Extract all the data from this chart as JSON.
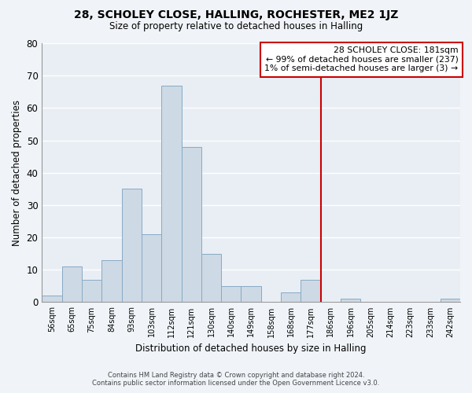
{
  "title": "28, SCHOLEY CLOSE, HALLING, ROCHESTER, ME2 1JZ",
  "subtitle": "Size of property relative to detached houses in Halling",
  "xlabel": "Distribution of detached houses by size in Halling",
  "ylabel": "Number of detached properties",
  "bar_labels": [
    "56sqm",
    "65sqm",
    "75sqm",
    "84sqm",
    "93sqm",
    "103sqm",
    "112sqm",
    "121sqm",
    "130sqm",
    "140sqm",
    "149sqm",
    "158sqm",
    "168sqm",
    "177sqm",
    "186sqm",
    "196sqm",
    "205sqm",
    "214sqm",
    "223sqm",
    "233sqm",
    "242sqm"
  ],
  "bar_values": [
    2,
    11,
    7,
    13,
    35,
    21,
    67,
    48,
    15,
    5,
    5,
    0,
    3,
    7,
    0,
    1,
    0,
    0,
    0,
    0,
    1
  ],
  "bar_color": "#cdd9e5",
  "bar_edge_color": "#88aac4",
  "vline_x_idx": 13.5,
  "vline_color": "#cc0000",
  "annotation_title": "28 SCHOLEY CLOSE: 181sqm",
  "annotation_line1": "← 99% of detached houses are smaller (237)",
  "annotation_line2": "1% of semi-detached houses are larger (3) →",
  "annotation_box_color": "#ffffff",
  "annotation_box_edge": "#cc0000",
  "ylim": [
    0,
    80
  ],
  "yticks": [
    0,
    10,
    20,
    30,
    40,
    50,
    60,
    70,
    80
  ],
  "footer1": "Contains HM Land Registry data © Crown copyright and database right 2024.",
  "footer2": "Contains public sector information licensed under the Open Government Licence v3.0.",
  "bg_color": "#f0f4f8",
  "plot_bg_color": "#e8eef4",
  "grid_color": "#ffffff"
}
